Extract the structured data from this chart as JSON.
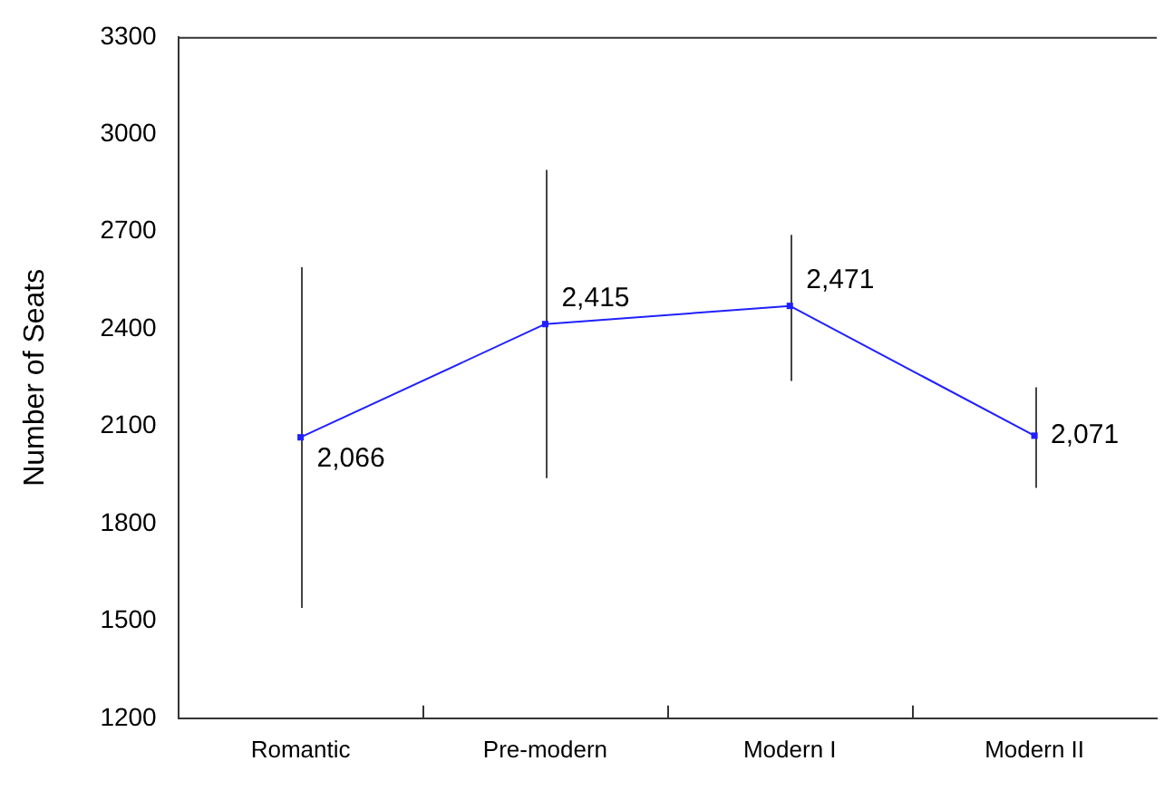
{
  "chart_data": {
    "type": "line",
    "ylabel": "Number of Seats",
    "categories": [
      "Romantic",
      "Pre-modern",
      "Modern I",
      "Modern II"
    ],
    "series": [
      {
        "color": "#2020ff",
        "values": [
          2066,
          2415,
          2471,
          2071
        ],
        "errors": [
          [
            1540,
            2590
          ],
          [
            1940,
            2890
          ],
          [
            2240,
            2690
          ],
          [
            1910,
            2220
          ]
        ],
        "value_labels": [
          "2,066",
          "2,415",
          "2,471",
          "2,071"
        ]
      }
    ],
    "ylim": [
      1200,
      3300
    ],
    "yticks": [
      1200,
      1500,
      1800,
      2100,
      2400,
      2700,
      3000,
      3300
    ],
    "grid": false,
    "legend": false,
    "marker": "square",
    "line_style": "solid"
  }
}
